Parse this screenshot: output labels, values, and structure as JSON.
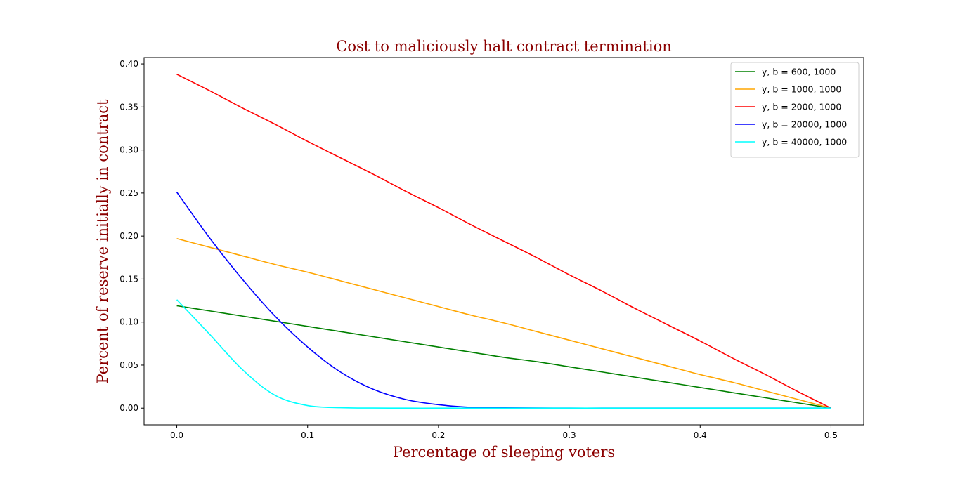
{
  "chart_data": {
    "type": "line",
    "title": "Cost to maliciously halt contract termination",
    "xlabel": "Percentage of sleeping voters",
    "ylabel": "Percent of reserve initially in contract",
    "xlim": [
      -0.025,
      0.525
    ],
    "ylim": [
      -0.0194,
      0.4074
    ],
    "xticks": [
      "0.0",
      "0.1",
      "0.2",
      "0.3",
      "0.4",
      "0.5"
    ],
    "yticks": [
      "0.00",
      "0.05",
      "0.10",
      "0.15",
      "0.20",
      "0.25",
      "0.30",
      "0.35",
      "0.40"
    ],
    "grid": false,
    "legend_position": "top-right",
    "x": [
      0.0,
      0.025,
      0.05,
      0.075,
      0.1,
      0.125,
      0.15,
      0.175,
      0.2,
      0.225,
      0.25,
      0.275,
      0.3,
      0.325,
      0.35,
      0.375,
      0.4,
      0.425,
      0.45,
      0.475,
      0.5
    ],
    "series": [
      {
        "name": "y, b = 600, 1000",
        "color": "#008000",
        "values": [
          0.119,
          0.113,
          0.107,
          0.101,
          0.095,
          0.089,
          0.083,
          0.077,
          0.071,
          0.065,
          0.059,
          0.054,
          0.048,
          0.042,
          0.036,
          0.03,
          0.024,
          0.018,
          0.012,
          0.006,
          0.0
        ]
      },
      {
        "name": "y, b = 1000, 1000",
        "color": "#ffa500",
        "values": [
          0.197,
          0.187,
          0.177,
          0.167,
          0.158,
          0.148,
          0.138,
          0.128,
          0.118,
          0.108,
          0.099,
          0.089,
          0.079,
          0.069,
          0.059,
          0.049,
          0.039,
          0.03,
          0.02,
          0.01,
          0.0
        ]
      },
      {
        "name": "y, b = 2000, 1000",
        "color": "#ff0000",
        "values": [
          0.388,
          0.369,
          0.349,
          0.33,
          0.31,
          0.291,
          0.272,
          0.252,
          0.233,
          0.213,
          0.194,
          0.175,
          0.155,
          0.136,
          0.116,
          0.097,
          0.078,
          0.058,
          0.039,
          0.019,
          0.0
        ]
      },
      {
        "name": "y, b = 20000, 1000",
        "color": "#0000ff",
        "values": [
          0.251,
          0.198,
          0.15,
          0.107,
          0.071,
          0.042,
          0.022,
          0.01,
          0.004,
          0.001,
          0.0004,
          0.0001,
          0.0,
          0.0,
          0.0,
          0.0,
          0.0,
          0.0,
          0.0,
          0.0,
          0.0
        ]
      },
      {
        "name": "y, b = 40000, 1000",
        "color": "#00ffff",
        "values": [
          0.126,
          0.086,
          0.045,
          0.015,
          0.003,
          0.0005,
          0.0001,
          0.0,
          0.0,
          0.0,
          0.0,
          0.0,
          0.0,
          0.0,
          0.0,
          0.0,
          0.0,
          0.0,
          0.0,
          0.0,
          0.0
        ]
      }
    ],
    "title_color": "#8b0000",
    "label_color": "#8b0000"
  }
}
